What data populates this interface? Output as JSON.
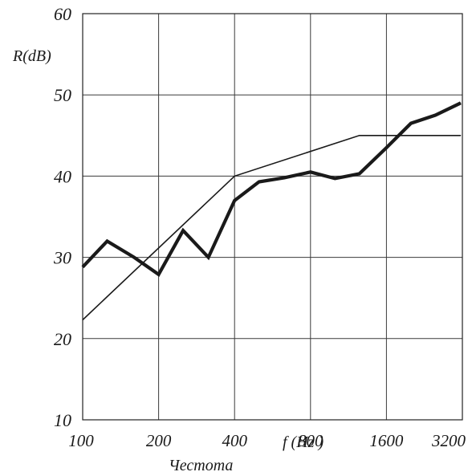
{
  "chart_data": {
    "type": "line",
    "xscale": "log2",
    "ylim": [
      10,
      60
    ],
    "yticks": [
      "10",
      "20",
      "30",
      "40",
      "50",
      "60"
    ],
    "x_tick_values": [
      100,
      200,
      400,
      800,
      1600,
      3200
    ],
    "x_tick_labels": [
      "100",
      "200",
      "400",
      "800",
      "1600",
      "3200"
    ],
    "ylabel": "R(dB)",
    "xlabel_word": "Честота",
    "xlabel_unit": "f (Hz )",
    "grid": true,
    "series": [
      {
        "style": "thick",
        "color": "#1a1a1a",
        "x": [
          100,
          125,
          160,
          200,
          250,
          315,
          400,
          500,
          630,
          800,
          1000,
          1250,
          1600,
          2000,
          2500,
          3150
        ],
        "y": [
          28.8,
          32.0,
          30.0,
          27.9,
          33.3,
          30.0,
          37.0,
          39.3,
          39.8,
          40.5,
          39.7,
          40.3,
          43.5,
          46.5,
          47.5,
          49.0
        ]
      },
      {
        "style": "thin",
        "color": "#1a1a1a",
        "x": [
          100,
          400,
          1250,
          3150
        ],
        "y": [
          22.3,
          40.0,
          45.0,
          45.0
        ]
      }
    ]
  }
}
